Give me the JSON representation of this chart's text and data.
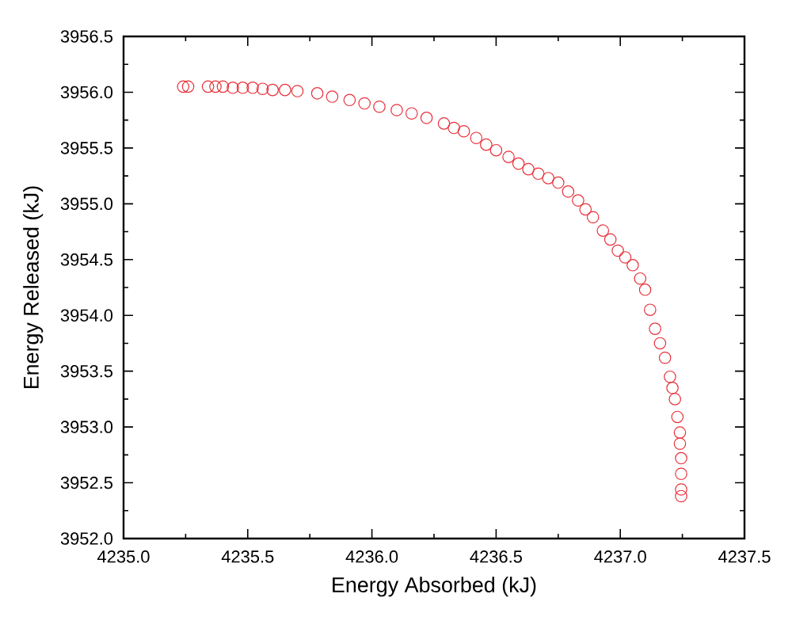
{
  "chart_data": {
    "type": "scatter",
    "xlabel": "Energy Absorbed (kJ)",
    "ylabel": "Energy Released (kJ)",
    "xlim": [
      4235.0,
      4237.5
    ],
    "ylim": [
      3952.0,
      3956.5
    ],
    "xticks": [
      {
        "value": 4235.0,
        "label": "4235.0"
      },
      {
        "value": 4235.5,
        "label": "4235.5"
      },
      {
        "value": 4236.0,
        "label": "4236.0"
      },
      {
        "value": 4236.5,
        "label": "4236.5"
      },
      {
        "value": 4237.0,
        "label": "4237.0"
      },
      {
        "value": 4237.5,
        "label": "4237.5"
      }
    ],
    "yticks": [
      {
        "value": 3952.0,
        "label": "3952.0"
      },
      {
        "value": 3952.5,
        "label": "3952.5"
      },
      {
        "value": 3953.0,
        "label": "3953.0"
      },
      {
        "value": 3953.5,
        "label": "3953.5"
      },
      {
        "value": 3954.0,
        "label": "3954.0"
      },
      {
        "value": 3954.5,
        "label": "3954.5"
      },
      {
        "value": 3955.0,
        "label": "3955.0"
      },
      {
        "value": 3955.5,
        "label": "3955.5"
      },
      {
        "value": 3956.0,
        "label": "3956.0"
      },
      {
        "value": 3956.5,
        "label": "3956.5"
      }
    ],
    "marker": "circle",
    "series": [
      {
        "color": "#e8303a",
        "x": [
          4235.24,
          4235.26,
          4235.34,
          4235.37,
          4235.4,
          4235.44,
          4235.48,
          4235.52,
          4235.56,
          4235.6,
          4235.65,
          4235.7,
          4235.78,
          4235.84,
          4235.91,
          4235.97,
          4236.03,
          4236.1,
          4236.16,
          4236.22,
          4236.29,
          4236.33,
          4236.37,
          4236.42,
          4236.46,
          4236.5,
          4236.55,
          4236.59,
          4236.63,
          4236.67,
          4236.71,
          4236.75,
          4236.79,
          4236.83,
          4236.86,
          4236.89,
          4236.93,
          4236.96,
          4236.99,
          4237.02,
          4237.05,
          4237.08,
          4237.1,
          4237.12,
          4237.14,
          4237.16,
          4237.18,
          4237.2,
          4237.21,
          4237.22,
          4237.23,
          4237.24,
          4237.24,
          4237.245,
          4237.245,
          4237.245,
          4237.245
        ],
        "values": [
          3956.05,
          3956.05,
          3956.05,
          3956.05,
          3956.05,
          3956.04,
          3956.04,
          3956.04,
          3956.03,
          3956.02,
          3956.02,
          3956.01,
          3955.99,
          3955.96,
          3955.93,
          3955.9,
          3955.87,
          3955.84,
          3955.81,
          3955.77,
          3955.72,
          3955.68,
          3955.65,
          3955.59,
          3955.53,
          3955.48,
          3955.42,
          3955.36,
          3955.31,
          3955.27,
          3955.23,
          3955.19,
          3955.11,
          3955.03,
          3954.95,
          3954.88,
          3954.76,
          3954.68,
          3954.58,
          3954.52,
          3954.45,
          3954.33,
          3954.23,
          3954.05,
          3953.88,
          3953.75,
          3953.62,
          3953.45,
          3953.35,
          3953.25,
          3953.09,
          3952.95,
          3952.85,
          3952.72,
          3952.58,
          3952.44,
          3952.38
        ]
      }
    ]
  }
}
